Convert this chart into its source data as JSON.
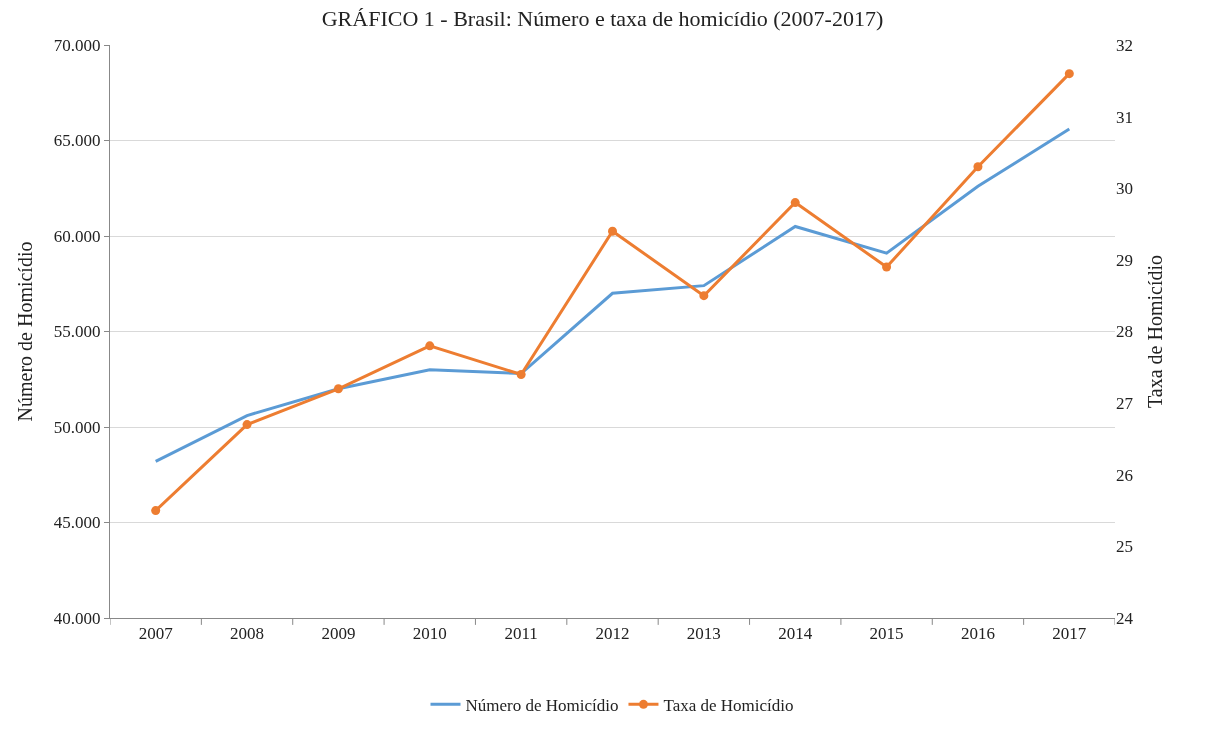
{
  "chart_data": {
    "type": "line",
    "title": "GRÁFICO 1 - Brasil: Número e taxa de homicídio (2007-2017)",
    "ylabel": "Número de Homicídio",
    "y2label": "Taxa de Homicídio",
    "categories": [
      "2007",
      "2008",
      "2009",
      "2010",
      "2011",
      "2012",
      "2013",
      "2014",
      "2015",
      "2016",
      "2017"
    ],
    "series": [
      {
        "name": "Número de Homicídio",
        "color": "#5b9bd5",
        "marker": "none",
        "values": [
          48200,
          50600,
          52000,
          53000,
          52800,
          57000,
          57400,
          60500,
          59100,
          62600,
          65600
        ]
      },
      {
        "name": "Taxa de Homicídio",
        "color": "#ed7d31",
        "marker": "circle",
        "axis": "y2",
        "values": [
          25.5,
          26.7,
          27.2,
          27.8,
          27.4,
          29.4,
          28.5,
          29.8,
          28.9,
          30.3,
          31.6
        ]
      }
    ],
    "ylim": [
      40000,
      70000
    ],
    "yticks": [
      {
        "value": 40000,
        "label": "40.000"
      },
      {
        "value": 45000,
        "label": "45.000"
      },
      {
        "value": 50000,
        "label": "50.000"
      },
      {
        "value": 55000,
        "label": "55.000"
      },
      {
        "value": 60000,
        "label": "60.000"
      },
      {
        "value": 65000,
        "label": "65.000"
      },
      {
        "value": 70000,
        "label": "70.000"
      }
    ],
    "y2lim": [
      24,
      32
    ],
    "y2ticks": [
      24,
      25,
      26,
      27,
      28,
      29,
      30,
      31,
      32
    ],
    "grid": "y",
    "legend": "bottom"
  }
}
